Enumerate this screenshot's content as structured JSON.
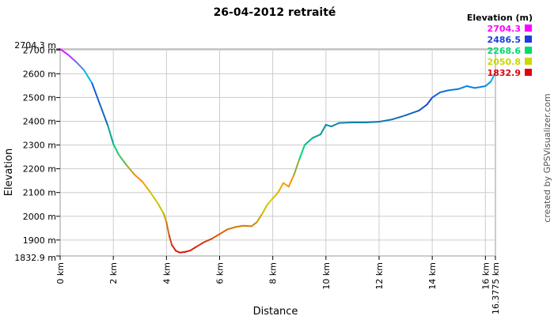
{
  "chart_data": {
    "type": "line",
    "title": "26-04-2012 retraité",
    "xlabel": "Distance",
    "ylabel": "Elevation",
    "x_unit": "km",
    "y_unit": "m",
    "xlim": [
      0,
      16.3775
    ],
    "ylim": [
      1832.9,
      2704.3
    ],
    "x_ticks": [
      "0 km",
      "2 km",
      "4 km",
      "6 km",
      "8 km",
      "10 km",
      "12 km",
      "14 km",
      "16 km",
      "16.3775 km"
    ],
    "y_ticks": [
      "2704.3 m",
      "2700 m",
      "2600 m",
      "2500 m",
      "2400 m",
      "2300 m",
      "2200 m",
      "2100 m",
      "2000 m",
      "1900 m",
      "1832.9 m"
    ],
    "grid": true,
    "legend": {
      "title": "Elevation (m)",
      "placement": "top-right",
      "entries": [
        {
          "label": "2704.3",
          "color": "#ff00ff"
        },
        {
          "label": "2486.5",
          "color": "#1a3fd8"
        },
        {
          "label": "2268.6",
          "color": "#00d870"
        },
        {
          "label": "2050.8",
          "color": "#c8d800"
        },
        {
          "label": "1832.9",
          "color": "#e00010"
        }
      ]
    },
    "series": [
      {
        "x": [
          0,
          0.3,
          0.6,
          0.9,
          1.2,
          1.5,
          1.8,
          2.0,
          2.2,
          2.5,
          2.8,
          3.1,
          3.4,
          3.7,
          3.9,
          4.0,
          4.1,
          4.2,
          4.35,
          4.5,
          4.7,
          4.9,
          5.1,
          5.4,
          5.7,
          6.0,
          6.3,
          6.6,
          6.9,
          7.2,
          7.4,
          7.6,
          7.8,
          8.0,
          8.2,
          8.4,
          8.6,
          8.8,
          9.0,
          9.2,
          9.5,
          9.8,
          10.0,
          10.2,
          10.5,
          11.0,
          11.5,
          12.0,
          12.5,
          13.0,
          13.5,
          13.8,
          14.0,
          14.3,
          14.6,
          15.0,
          15.3,
          15.6,
          16.0,
          16.2,
          16.3775
        ],
        "y": [
          2704,
          2680,
          2650,
          2615,
          2560,
          2470,
          2380,
          2305,
          2260,
          2215,
          2175,
          2145,
          2100,
          2050,
          2010,
          1975,
          1920,
          1880,
          1855,
          1847,
          1850,
          1856,
          1870,
          1890,
          1905,
          1925,
          1945,
          1955,
          1960,
          1958,
          1975,
          2010,
          2050,
          2075,
          2100,
          2140,
          2125,
          2175,
          2240,
          2300,
          2330,
          2345,
          2385,
          2378,
          2393,
          2395,
          2395,
          2398,
          2408,
          2425,
          2445,
          2470,
          2500,
          2522,
          2530,
          2536,
          2548,
          2540,
          2548,
          2566,
          2605
        ]
      }
    ]
  },
  "credit": "created by GPSVisualizer.com"
}
